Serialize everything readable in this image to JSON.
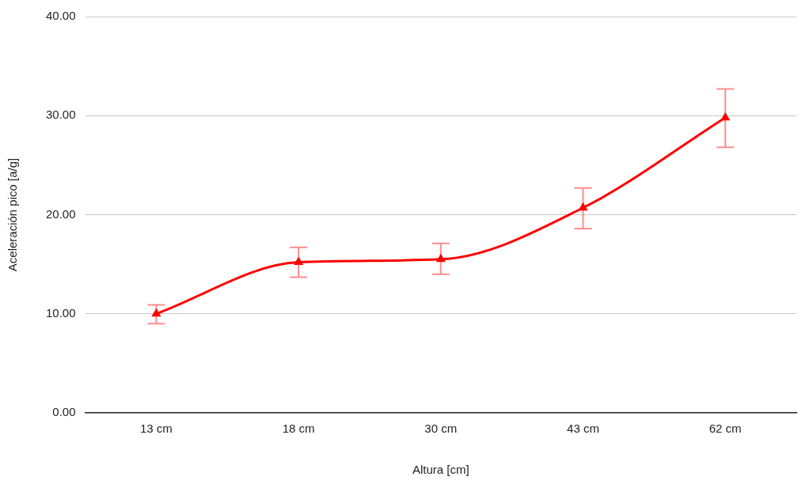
{
  "chart_data": {
    "type": "line",
    "xlabel": "Altura [cm]",
    "ylabel": "Aceleración pico [a/g]",
    "categories": [
      "13 cm",
      "18 cm",
      "30 cm",
      "43 cm",
      "62 cm"
    ],
    "series": [
      {
        "color": "#ff0000",
        "values": [
          10.0,
          15.2,
          15.5,
          20.7,
          29.8
        ],
        "errors": [
          [
            9.0,
            10.9
          ],
          [
            13.7,
            16.7
          ],
          [
            14.0,
            17.1
          ],
          [
            18.6,
            22.7
          ],
          [
            26.8,
            32.7
          ]
        ]
      }
    ],
    "ylim": [
      0,
      40
    ],
    "yticks": [
      {
        "value": 0,
        "label": "0.00"
      },
      {
        "value": 10,
        "label": "10.00"
      },
      {
        "value": 20,
        "label": "20.00"
      },
      {
        "value": 30,
        "label": "30.00"
      },
      {
        "value": 40,
        "label": "40.00"
      }
    ],
    "grid": "y",
    "marker": "triangle",
    "line_style": "solid",
    "legend": false
  }
}
